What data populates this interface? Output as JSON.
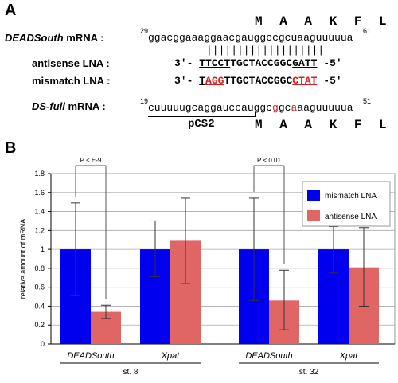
{
  "panelA": {
    "label": "A",
    "aa_top": "M A A K F L",
    "aa_bottom": "M A A K F L",
    "deadsouth": {
      "label": "DEADSouth",
      "suffix": " mRNA :",
      "start": "29",
      "end": "61",
      "seq_a": "ggacggaaaggaacg",
      "seq_b": "augg",
      "seq_c": "c",
      "seq_d": "cgcuaag",
      "seq_e": "uuuuua"
    },
    "pairing": "|||||||||||||||||||",
    "antisense": {
      "label": "antisense LNA :",
      "prefix": "3'-",
      "p1": "TTCCT",
      "p2": "TGCTACCGGC",
      "p3": "GATT",
      "suffix": "-5'"
    },
    "mismatch": {
      "label": "mismatch LNA :",
      "prefix": "3'-",
      "p1": "T",
      "p2": "AGG",
      "p3": "TTGCTACCGGC",
      "p4": "CTAT",
      "suffix": "-5'"
    },
    "dsfull": {
      "label": "DS-full",
      "suffix": " mRNA :",
      "start": "19",
      "end": "51",
      "seq_a": "cuuuuugcaggaucc",
      "seq_b": "auggc",
      "seq_c": "g",
      "seq_d": "gc",
      "seq_e": "a",
      "seq_f": "aaguuuuua"
    },
    "vector": "pCS2"
  },
  "panelB": {
    "label": "B"
  },
  "chart_data": {
    "type": "bar",
    "ylabel": "relative amount of mRNA",
    "ylim": [
      0,
      1.8
    ],
    "yticks": [
      "0",
      "0.2",
      "0.4",
      "0.6",
      "0.8",
      "1",
      "1.2",
      "1.4",
      "1.6",
      "1.8"
    ],
    "categories": [
      "DEADSouth",
      "Xpat",
      "DEADSouth",
      "Xpat"
    ],
    "stages": [
      "st. 8",
      "st. 32"
    ],
    "series": [
      {
        "name": "mismatch LNA",
        "color": "#0000ee",
        "values": [
          1.0,
          1.0,
          1.0,
          1.0
        ],
        "err_low": [
          0.51,
          0.71,
          0.46,
          0.75
        ],
        "err_high": [
          1.49,
          1.3,
          1.54,
          1.24
        ]
      },
      {
        "name": "antisense LNA",
        "color": "#e06666",
        "values": [
          0.34,
          1.09,
          0.46,
          0.81
        ],
        "err_low": [
          0.27,
          0.64,
          0.15,
          0.4
        ],
        "err_high": [
          0.41,
          1.54,
          0.78,
          1.23
        ]
      }
    ],
    "annotations": [
      "P < E-9",
      "P < 0.01"
    ],
    "grid": true,
    "legend": "top-right"
  }
}
